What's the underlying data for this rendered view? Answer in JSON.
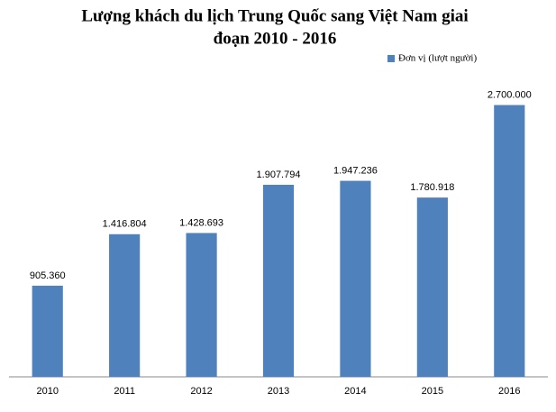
{
  "chart_data": {
    "type": "bar",
    "title": [
      "Lượng khách du lịch Trung Quốc sang Việt Nam giai",
      "đoạn 2010 - 2016"
    ],
    "categories": [
      "2010",
      "2011",
      "2012",
      "2013",
      "2014",
      "2015",
      "2016"
    ],
    "series": [
      {
        "name": "Đơn vị (lượt người)",
        "color": "#4f81bd",
        "values": [
          905360,
          1416804,
          1428693,
          1907794,
          1947236,
          1780918,
          2700000
        ],
        "value_labels": [
          "905.360",
          "1.416.804",
          "1.428.693",
          "1.907.794",
          "1.947.236",
          "1.780.918",
          "2.700.000"
        ]
      }
    ],
    "ylim": [
      0,
      3000000
    ],
    "legend": "top-right"
  }
}
